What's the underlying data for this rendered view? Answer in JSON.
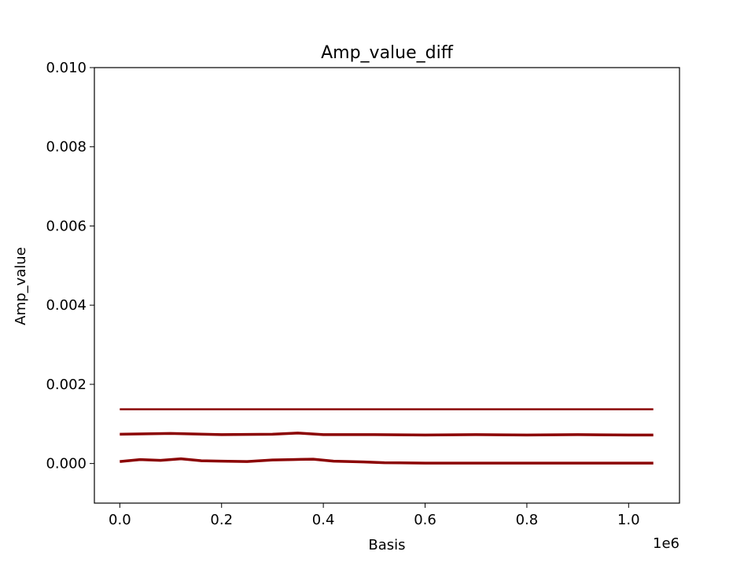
{
  "chart_data": {
    "type": "line",
    "title": "Amp_value_diff",
    "xlabel": "Basis",
    "ylabel": "Amp_value",
    "x_offset_label": "1e6",
    "xlim": [
      -50000,
      1100000
    ],
    "ylim": [
      -0.001,
      0.01
    ],
    "xticks": [
      0,
      200000,
      400000,
      600000,
      800000,
      1000000
    ],
    "xtick_labels": [
      "0.0",
      "0.2",
      "0.4",
      "0.6",
      "0.8",
      "1.0"
    ],
    "yticks": [
      0.0,
      0.002,
      0.004,
      0.006,
      0.008,
      0.01
    ],
    "ytick_labels": [
      "0.000",
      "0.002",
      "0.004",
      "0.006",
      "0.008",
      "0.010"
    ],
    "grid": false,
    "color": "#8b0000",
    "series": [
      {
        "x": [
          0,
          1048576
        ],
        "y": [
          0.00137,
          0.00137
        ]
      },
      {
        "x": [
          0,
          100000,
          200000,
          300000,
          350000,
          400000,
          500000,
          600000,
          700000,
          800000,
          900000,
          1000000,
          1048576
        ],
        "y": [
          0.00074,
          0.00076,
          0.00073,
          0.00074,
          0.00077,
          0.00073,
          0.00073,
          0.00072,
          0.00073,
          0.00072,
          0.00073,
          0.00072,
          0.00072
        ]
      },
      {
        "x": [
          0,
          40000,
          80000,
          120000,
          160000,
          200000,
          250000,
          300000,
          340000,
          380000,
          420000,
          480000,
          520000,
          600000,
          700000,
          800000,
          900000,
          1000000,
          1048576
        ],
        "y": [
          5e-05,
          0.0001,
          8e-05,
          0.00012,
          7e-05,
          6e-05,
          5e-05,
          9e-05,
          0.0001,
          0.00011,
          6e-05,
          4e-05,
          2e-05,
          1e-05,
          1e-05,
          1e-05,
          1e-05,
          1e-05,
          1e-05
        ]
      }
    ]
  }
}
